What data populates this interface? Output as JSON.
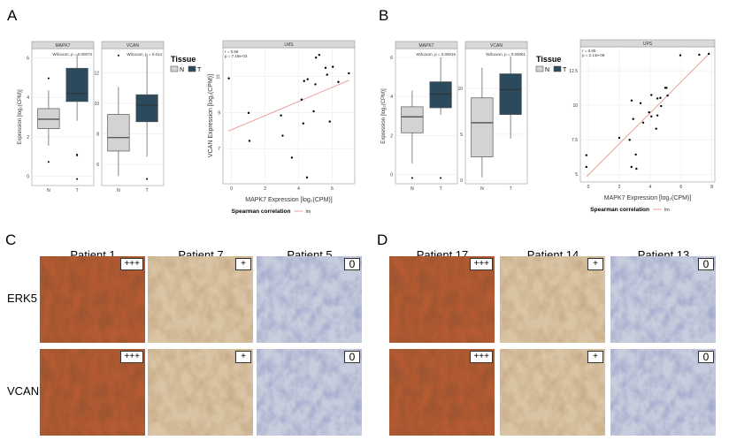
{
  "panels": {
    "A": "A",
    "B": "B",
    "C": "C",
    "D": "D"
  },
  "legend": {
    "title": "Tissue",
    "items": [
      "N",
      "T"
    ],
    "colors": {
      "N": "#d3d3d3",
      "T": "#2c4a5e"
    }
  },
  "chart_data": [
    {
      "type": "box",
      "panel": "A",
      "strip": "MAPK7",
      "annotation": "Wilcoxon, p = 0.00073",
      "ylabel": "Expression [log₂(CPM)]",
      "categories": [
        "N",
        "T"
      ],
      "yticks": [
        0,
        2,
        4,
        6
      ],
      "ylim": [
        -0.48,
        6.48
      ],
      "boxes": [
        {
          "q1": 2.41,
          "median": 2.89,
          "q3": 3.43,
          "lower": 1.54,
          "upper": 4.36,
          "outliers": [
            4.97,
            0.72
          ]
        },
        {
          "q1": 3.79,
          "median": 4.2,
          "q3": 5.48,
          "lower": 2.81,
          "upper": 6.18,
          "outliers": [
            1.09,
            1.05,
            -0.15
          ]
        }
      ]
    },
    {
      "type": "box",
      "panel": "A",
      "strip": "VCAN",
      "annotation": "Wilcoxon, p = 0.014",
      "categories": [
        "N",
        "T"
      ],
      "yticks": [
        6,
        8,
        10,
        12
      ],
      "ylim": [
        4.61,
        13.58
      ],
      "boxes": [
        {
          "q1": 6.87,
          "median": 7.75,
          "q3": 9.27,
          "lower": 5.23,
          "upper": 11.06,
          "outliers": [
            13.13
          ]
        },
        {
          "q1": 8.79,
          "median": 9.87,
          "q3": 10.56,
          "lower": 6.5,
          "upper": 13.13,
          "outliers": [
            5.04
          ]
        }
      ]
    },
    {
      "type": "scatter",
      "panel": "A",
      "strip": "LMS",
      "annotation": [
        "r = 0.58",
        "p = 7.15e-03"
      ],
      "xlabel": "MAPK7 Expression [log₂(CPM)]",
      "ylabel": "VCAN Expression [log₂(CPM)]",
      "xticks": [
        0,
        2,
        4,
        6
      ],
      "yticks": [
        7,
        9,
        11
      ],
      "xlim": [
        -0.51,
        7.35
      ],
      "ylim": [
        5.05,
        12.6
      ],
      "legend": {
        "title": "Spearman correlation",
        "item": "lm"
      },
      "line_color": "#e8a09a",
      "fit": [
        [
          -0.2,
          7.97
        ],
        [
          7.0,
          10.79
        ]
      ],
      "points": [
        [
          -0.16,
          10.9
        ],
        [
          1.02,
          8.98
        ],
        [
          1.07,
          7.43
        ],
        [
          2.95,
          8.84
        ],
        [
          3.05,
          7.72
        ],
        [
          3.6,
          6.5
        ],
        [
          4.18,
          9.72
        ],
        [
          4.28,
          8.4
        ],
        [
          4.33,
          10.75
        ],
        [
          4.54,
          10.85
        ],
        [
          4.5,
          5.4
        ],
        [
          4.9,
          9.07
        ],
        [
          5.0,
          10.57
        ],
        [
          5.04,
          12.05
        ],
        [
          5.23,
          12.2
        ],
        [
          5.61,
          11.48
        ],
        [
          5.7,
          11.1
        ],
        [
          5.86,
          8.5
        ],
        [
          6.04,
          11.54
        ],
        [
          6.37,
          10.7
        ],
        [
          7.0,
          11.18
        ]
      ]
    },
    {
      "type": "box",
      "panel": "B",
      "strip": "MAPK7",
      "annotation": "Wilcoxon, p = 0.00015",
      "ylabel": "Expression [log₂(CPM)]",
      "categories": [
        "N",
        "T"
      ],
      "yticks": [
        0,
        2,
        4,
        6
      ],
      "ylim": [
        -0.47,
        6.45
      ],
      "boxes": [
        {
          "q1": 2.14,
          "median": 2.96,
          "q3": 3.47,
          "lower": 0.57,
          "upper": 4.3,
          "outliers": [
            -0.17
          ]
        },
        {
          "q1": 3.42,
          "median": 4.12,
          "q3": 4.75,
          "lower": 3.06,
          "upper": 6.0,
          "outliers": [
            -0.17
          ]
        }
      ]
    },
    {
      "type": "box",
      "panel": "B",
      "strip": "VCAN",
      "annotation": "Wilcoxon, p = 0.00061",
      "categories": [
        "N",
        "T"
      ],
      "yticks": [
        0,
        5,
        10
      ],
      "ylim": [
        -0.38,
        14.3
      ],
      "boxes": [
        {
          "q1": 2.54,
          "median": 6.25,
          "q3": 8.95,
          "lower": 0.32,
          "upper": 12.22,
          "outliers": []
        },
        {
          "q1": 7.14,
          "median": 9.84,
          "q3": 11.56,
          "lower": 4.52,
          "upper": 13.46,
          "outliers": []
        }
      ]
    },
    {
      "type": "scatter",
      "panel": "B",
      "strip": "UPS",
      "annotation": [
        "r = 0.85",
        "p = 2.14e-06"
      ],
      "xlabel": "MAPK7 Expression [log₂(CPM)]",
      "xticks": [
        0,
        2,
        4,
        6,
        8
      ],
      "yticks": [
        5.0,
        7.5,
        10.0,
        12.5
      ],
      "xlim": [
        -0.52,
        8.19
      ],
      "ylim": [
        4.44,
        14.23
      ],
      "legend": {
        "title": "Spearman correlation",
        "item": "lm"
      },
      "line_color": "#e8a09a",
      "fit": [
        [
          -0.1,
          4.85
        ],
        [
          7.8,
          13.7
        ]
      ],
      "points": [
        [
          -0.13,
          6.38
        ],
        [
          -0.13,
          5.53
        ],
        [
          2.0,
          7.64
        ],
        [
          2.67,
          7.49
        ],
        [
          2.8,
          10.34
        ],
        [
          2.9,
          9.0
        ],
        [
          2.79,
          5.53
        ],
        [
          3.07,
          6.43
        ],
        [
          3.11,
          5.4
        ],
        [
          3.38,
          10.15
        ],
        [
          3.55,
          8.74
        ],
        [
          3.93,
          9.49
        ],
        [
          4.08,
          10.74
        ],
        [
          4.08,
          9.19
        ],
        [
          4.39,
          8.3
        ],
        [
          4.47,
          10.49
        ],
        [
          4.47,
          9.26
        ],
        [
          4.66,
          10.53
        ],
        [
          4.71,
          9.94
        ],
        [
          4.98,
          11.26
        ],
        [
          5.06,
          11.26
        ],
        [
          5.13,
          10.7
        ],
        [
          5.95,
          13.62
        ],
        [
          7.18,
          13.66
        ],
        [
          7.8,
          13.72
        ]
      ]
    }
  ],
  "histology": {
    "C": {
      "patients": [
        "Patient 1",
        "Patient 7",
        "Patient 5"
      ],
      "rows": [
        "ERK5",
        "VCAN"
      ],
      "scores": [
        [
          "+++",
          "+",
          "0"
        ],
        [
          "+++",
          "+",
          "0"
        ]
      ]
    },
    "D": {
      "patients": [
        "Patient 17",
        "Patient 14",
        "Patient 13"
      ],
      "rows": [
        "ERK5",
        "VCAN"
      ],
      "scores": [
        [
          "+++",
          "+",
          "0"
        ],
        [
          "+++",
          "+",
          "0"
        ]
      ]
    }
  }
}
